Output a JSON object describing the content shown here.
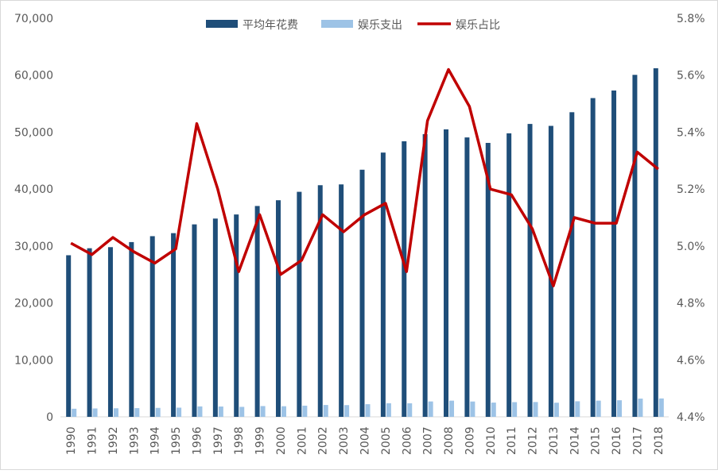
{
  "chart_data": {
    "type": "bar+line",
    "categories": [
      "1990",
      "1991",
      "1992",
      "1993",
      "1994",
      "1995",
      "1996",
      "1997",
      "1998",
      "1999",
      "2000",
      "2001",
      "2002",
      "2003",
      "2004",
      "2005",
      "2006",
      "2007",
      "2008",
      "2009",
      "2010",
      "2011",
      "2012",
      "2013",
      "2014",
      "2015",
      "2016",
      "2017",
      "2018"
    ],
    "series": [
      {
        "name": "平均年花费",
        "type": "bar",
        "axis": "left",
        "color": "#1f4e79",
        "values": [
          28380,
          29610,
          29800,
          30690,
          31730,
          32260,
          33800,
          34820,
          35540,
          37030,
          38040,
          39520,
          40680,
          40820,
          43400,
          46410,
          48400,
          49640,
          50490,
          49070,
          48110,
          49790,
          51440,
          51100,
          53500,
          55980,
          57310,
          60060,
          61220
        ]
      },
      {
        "name": "娱乐支出",
        "type": "bar",
        "axis": "left",
        "color": "#9dc3e6",
        "values": [
          1420,
          1470,
          1500,
          1530,
          1570,
          1610,
          1830,
          1810,
          1750,
          1890,
          1860,
          1960,
          2080,
          2060,
          2220,
          2390,
          2380,
          2700,
          2840,
          2690,
          2500,
          2580,
          2600,
          2480,
          2730,
          2840,
          2910,
          3200,
          3230
        ]
      },
      {
        "name": "娱乐占比",
        "type": "line",
        "axis": "right",
        "color": "#c00000",
        "values": [
          5.01,
          4.97,
          5.03,
          4.98,
          4.94,
          4.99,
          5.43,
          5.2,
          4.91,
          5.11,
          4.9,
          4.95,
          5.11,
          5.05,
          5.11,
          5.15,
          4.91,
          5.44,
          5.62,
          5.49,
          5.2,
          5.18,
          5.06,
          4.86,
          5.1,
          5.08,
          5.08,
          5.33,
          5.27
        ]
      }
    ],
    "y_left": {
      "min": 0,
      "max": 70000,
      "ticks": [
        "0",
        "10,000",
        "20,000",
        "30,000",
        "40,000",
        "50,000",
        "60,000",
        "70,000"
      ]
    },
    "y_right": {
      "min": 4.4,
      "max": 5.8,
      "ticks": [
        "4.4%",
        "4.6%",
        "4.8%",
        "5.0%",
        "5.2%",
        "5.4%",
        "5.6%",
        "5.8%"
      ]
    },
    "legend": "top",
    "grid": false
  }
}
